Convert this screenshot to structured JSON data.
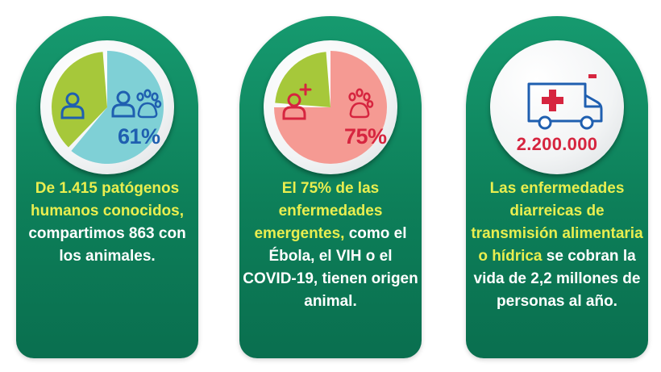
{
  "cards": [
    {
      "stat": "61%",
      "text_hl": "De 1.415 patógenos humanos conocidos,",
      "text_rest": " compartimos 863 con los animales.",
      "icons": [
        "person-icon",
        "person-icon",
        "paw-icon"
      ],
      "chart": {
        "share_pct": 61,
        "colors": {
          "left": "#a6c83a",
          "right": "#7fd0d6"
        }
      }
    },
    {
      "stat": "75%",
      "text_hl": "El 75% de las enfermedades emergentes,",
      "text_rest": " como el Ébola, el VIH o el COVID-19, tienen origen animal.",
      "icons": [
        "sick-person-icon",
        "paw-icon"
      ],
      "chart": {
        "share_pct": 75,
        "colors": {
          "left": "#a6c83a",
          "right": "#f59a93"
        }
      }
    },
    {
      "stat": "2.200.000",
      "text_hl": "Las enfermedades diarreicas de transmisión alimentaria o hídrica",
      "text_rest": " se cobran la vida de 2,2 millones de personas al año.",
      "icons": [
        "ambulance-icon"
      ]
    }
  ],
  "colors": {
    "card_green": "#108a62",
    "highlight_yellow": "#e9ee4f",
    "blue": "#1f5fb0",
    "red": "#d6253f"
  }
}
